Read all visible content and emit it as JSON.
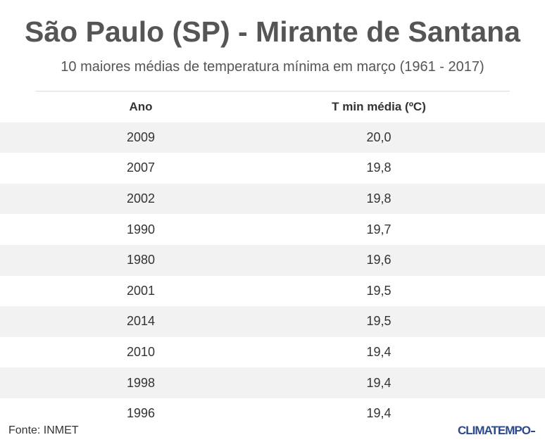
{
  "title": "São Paulo (SP) - Mirante de Santana",
  "subtitle": "10 maiores médias de temperatura mínima em março (1961 - 2017)",
  "chart_data": {
    "type": "table",
    "columns": [
      "Ano",
      "T min média (ºC)"
    ],
    "rows": [
      {
        "year": "2009",
        "value": "20,0"
      },
      {
        "year": "2007",
        "value": "19,8"
      },
      {
        "year": "2002",
        "value": "19,8"
      },
      {
        "year": "1990",
        "value": "19,7"
      },
      {
        "year": "1980",
        "value": "19,6"
      },
      {
        "year": "2001",
        "value": "19,5"
      },
      {
        "year": "2014",
        "value": "19,5"
      },
      {
        "year": "2010",
        "value": "19,4"
      },
      {
        "year": "1998",
        "value": "19,4"
      },
      {
        "year": "1996",
        "value": "19,4"
      }
    ]
  },
  "footer": {
    "source": "Fonte: INMET",
    "brand": "CLIMATEMPO"
  },
  "colors": {
    "title": "#555555",
    "row_shade": "#f2f2f2",
    "brand": "#2c4a8a"
  }
}
